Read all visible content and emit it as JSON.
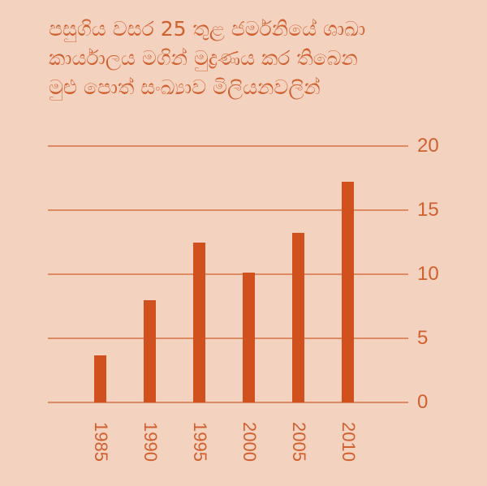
{
  "title_lines": [
    "පසුගිය වසර 25 තුළ ජර්මනියේ ශාඛා",
    "කාර්යාලය මගින් මුද්‍රණය කර තිබෙන",
    "මුළු පොත් සංඛ්‍යාව මිලියනවලින්"
  ],
  "colors": {
    "background": "#F4D2C0",
    "bar": "#D0511E",
    "gridline": "#E08A64",
    "text": "#D0602E"
  },
  "chart_data": {
    "type": "bar",
    "title": "පසුගිය වසර 25 තුළ ජර්මනියේ ශාඛා කාර්යාලය මගින් මුද්‍රණය කර තිබෙන මුළු පොත් සංඛ්‍යාව මිලියනවලින්",
    "categories": [
      "1985",
      "1990",
      "1995",
      "2000",
      "2005",
      "2010"
    ],
    "values": [
      3.7,
      8.0,
      12.5,
      10.1,
      13.2,
      17.2
    ],
    "xlabel": "",
    "ylabel": "",
    "ylim": [
      0,
      20
    ],
    "yticks": [
      "0",
      "5",
      "10",
      "15",
      "20"
    ],
    "y_axis_position": "right",
    "x_tick_rotation": 90,
    "grid": true,
    "legend": null
  }
}
